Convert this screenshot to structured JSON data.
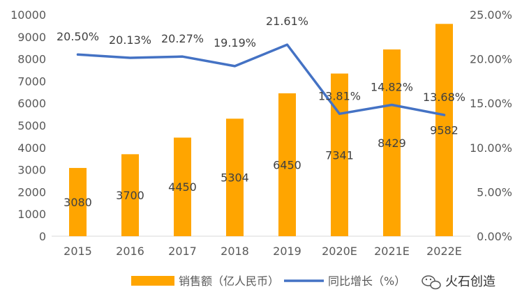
{
  "chart_data": {
    "type": "bar",
    "categories": [
      "2015",
      "2016",
      "2017",
      "2018",
      "2019",
      "2020E",
      "2021E",
      "2022E"
    ],
    "series": [
      {
        "name": "销售额（亿人民币）",
        "type": "bar",
        "axis": "left",
        "values": [
          3080,
          3700,
          4450,
          5304,
          6450,
          7341,
          8429,
          9582
        ],
        "labels": [
          "3080",
          "3700",
          "4450",
          "5304",
          "6450",
          "7341",
          "8429",
          "9582"
        ]
      },
      {
        "name": "同比增长（%）",
        "type": "line",
        "axis": "right",
        "values": [
          20.5,
          20.13,
          20.27,
          19.19,
          21.61,
          13.81,
          14.82,
          13.68
        ],
        "labels": [
          "20.50%",
          "20.13%",
          "20.27%",
          "19.19%",
          "21.61%",
          "13.81%",
          "14.82%",
          "13.68%"
        ]
      }
    ],
    "ylim": [
      0,
      10000
    ],
    "y_ticks": [
      "0",
      "1000",
      "2000",
      "3000",
      "4000",
      "5000",
      "6000",
      "7000",
      "8000",
      "9000",
      "10000"
    ],
    "y2lim": [
      0,
      25
    ],
    "y2_ticks": [
      "0.00%",
      "5.00%",
      "10.00%",
      "15.00%",
      "20.00%",
      "25.00%"
    ],
    "title": "",
    "xlabel": "",
    "ylabel": "",
    "grid": false,
    "legend_position": "bottom",
    "colors": {
      "bar": "#FFA500",
      "line": "#4472C4",
      "text": "#595959"
    }
  },
  "watermark": {
    "text": "火石创造",
    "icon": "wechat-icon"
  }
}
